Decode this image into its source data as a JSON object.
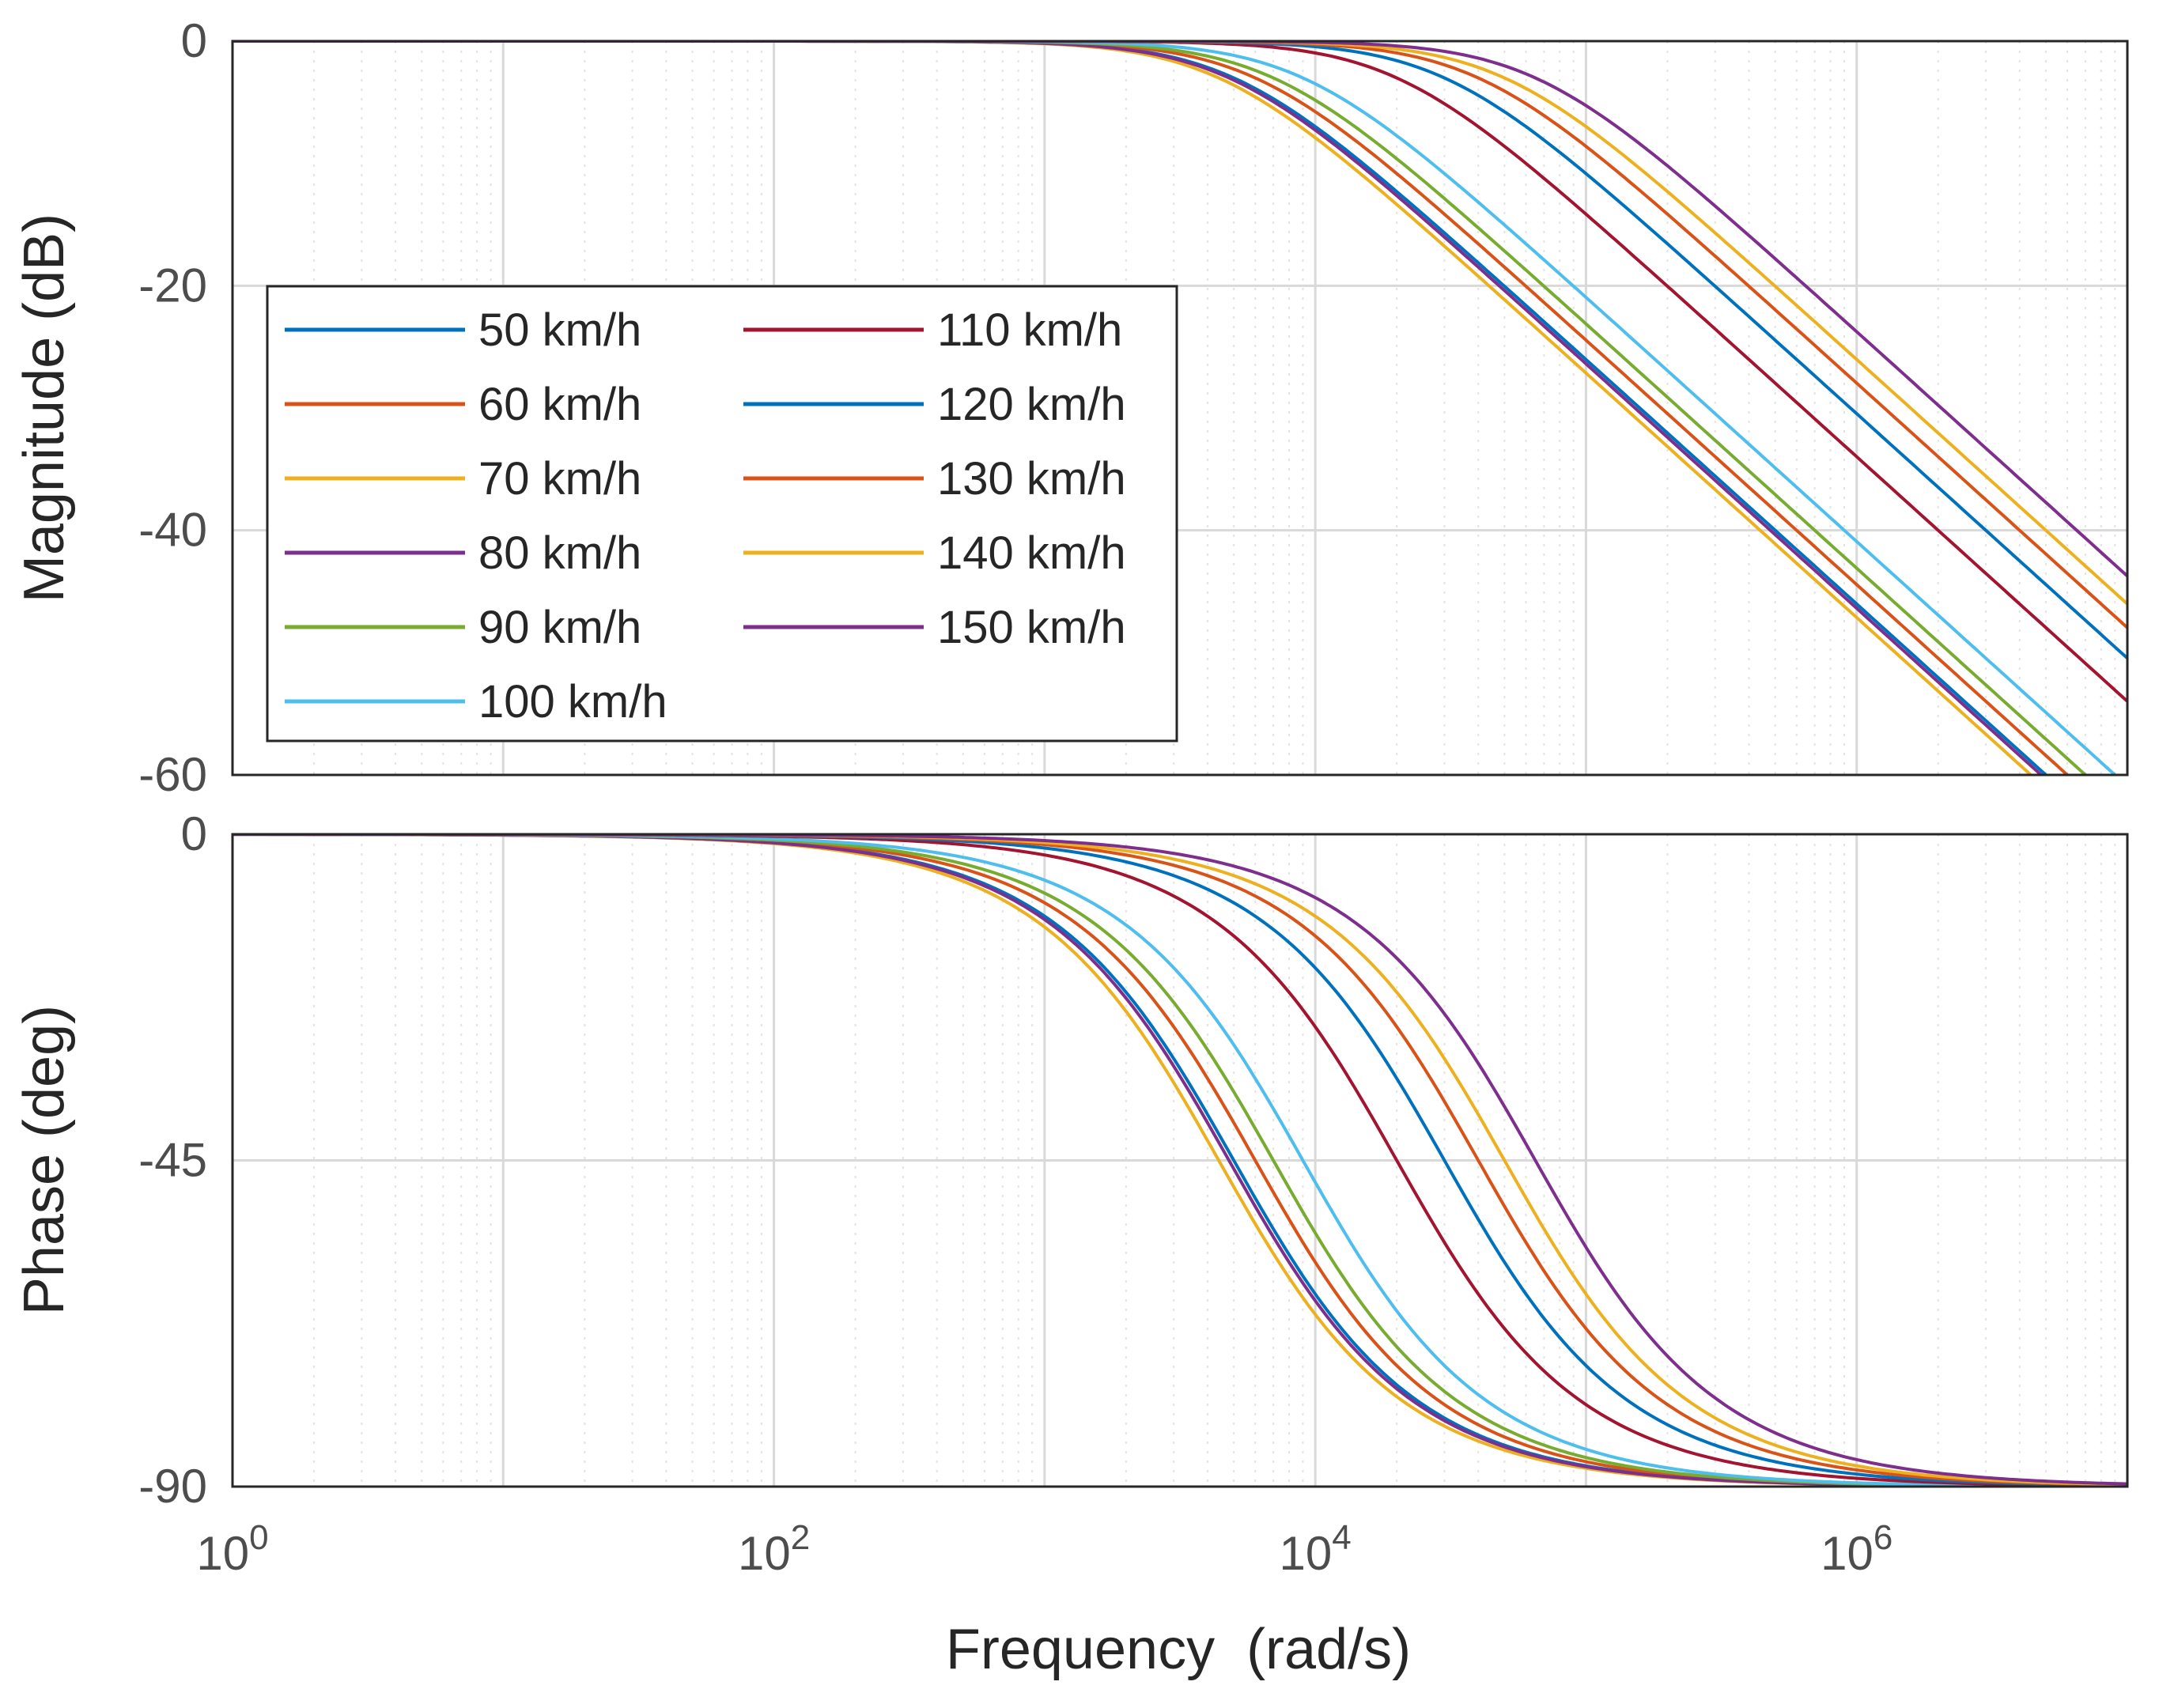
{
  "chart_data": {
    "type": "line",
    "subtype": "bode",
    "xlabel": "Frequency  (rad/s)",
    "xscale": "log",
    "xlim": [
      1,
      10000000
    ],
    "x_ticks": [
      {
        "base": "10",
        "exp": "0"
      },
      {
        "base": "10",
        "exp": "2"
      },
      {
        "base": "10",
        "exp": "4"
      },
      {
        "base": "10",
        "exp": "6"
      }
    ],
    "grid": true,
    "legend": {
      "location": "inside upper-left of magnitude plot",
      "columns": 2
    },
    "panels": [
      {
        "name": "magnitude",
        "ylabel": "Magnitude (dB)",
        "ylim": [
          -60,
          0
        ],
        "yticks": [
          "0",
          "-20",
          "-40",
          "-60"
        ]
      },
      {
        "name": "phase",
        "ylabel": "Phase (deg)",
        "ylim": [
          -90,
          0
        ],
        "yticks": [
          "0",
          "-45",
          "-90"
        ]
      }
    ],
    "model": "first-order low-pass; magnitude = -10*log10(1+(w/wc)^2), phase = -atan(w/wc)",
    "series": [
      {
        "name": "50 km/h",
        "color": "#0072BD",
        "corner_rad_s": 5000
      },
      {
        "name": "60 km/h",
        "color": "#D95319",
        "corner_rad_s": 6000
      },
      {
        "name": "70 km/h",
        "color": "#EDB120",
        "corner_rad_s": 4400
      },
      {
        "name": "80 km/h",
        "color": "#7E2F8E",
        "corner_rad_s": 4800
      },
      {
        "name": "90 km/h",
        "color": "#77AC30",
        "corner_rad_s": 7000
      },
      {
        "name": "100 km/h",
        "color": "#4DBEEE",
        "corner_rad_s": 9000
      },
      {
        "name": "110 km/h",
        "color": "#A2142F",
        "corner_rad_s": 20000
      },
      {
        "name": "120 km/h",
        "color": "#0072BD",
        "corner_rad_s": 30000
      },
      {
        "name": "130 km/h",
        "color": "#D95319",
        "corner_rad_s": 40000
      },
      {
        "name": "140 km/h",
        "color": "#EDB120",
        "corner_rad_s": 50000
      },
      {
        "name": "150 km/h",
        "color": "#7E2F8E",
        "corner_rad_s": 65000
      }
    ]
  }
}
